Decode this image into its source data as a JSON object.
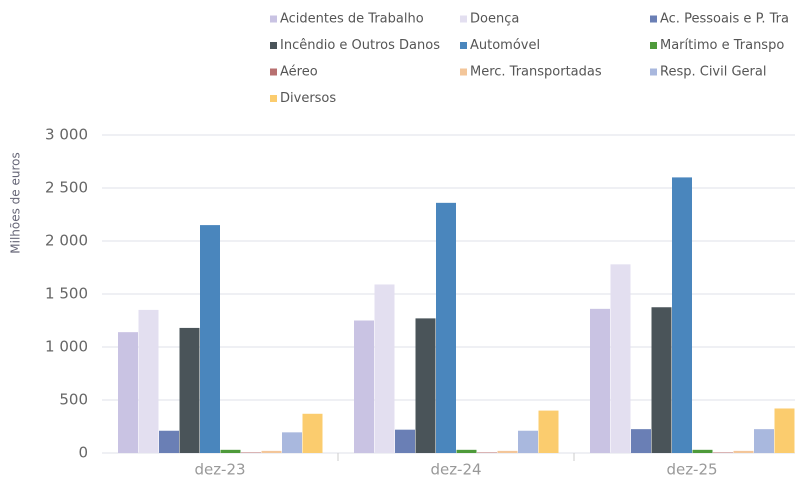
{
  "chart_data": {
    "type": "bar",
    "y_label": "Milhões de euros",
    "categories": [
      "dez-23",
      "dez-24",
      "dez-25"
    ],
    "series": [
      {
        "name": "Acidentes de Trabalho",
        "color": "#c9c3e3",
        "values": [
          1140,
          1250,
          1360
        ]
      },
      {
        "name": "Doença",
        "color": "#e3dff0",
        "values": [
          1350,
          1590,
          1780
        ]
      },
      {
        "name": "Ac. Pessoais e P. Tra",
        "color": "#6a7fb5",
        "values": [
          210,
          220,
          225
        ]
      },
      {
        "name": "Incêndio e Outros Danos",
        "color": "#4a5459",
        "values": [
          1180,
          1270,
          1375
        ]
      },
      {
        "name": "Automóvel",
        "color": "#4a86bd",
        "values": [
          2150,
          2360,
          2600
        ]
      },
      {
        "name": "Marítimo e Transpo",
        "color": "#4e9a3a",
        "values": [
          30,
          30,
          30
        ]
      },
      {
        "name": "Aéreo",
        "color": "#b87070",
        "values": [
          5,
          5,
          5
        ]
      },
      {
        "name": "Merc. Transportadas",
        "color": "#f3c69a",
        "values": [
          20,
          20,
          20
        ]
      },
      {
        "name": "Resp. Civil Geral",
        "color": "#a9b8de",
        "values": [
          195,
          210,
          225
        ]
      },
      {
        "name": "Diversos",
        "color": "#fbcc6e",
        "values": [
          370,
          400,
          420
        ]
      }
    ],
    "ylim": [
      0,
      3000
    ],
    "yticks": [
      0,
      500,
      {
        "value": 1000,
        "label": "1 000"
      },
      {
        "value": 1500,
        "label": "1 500"
      },
      {
        "value": 2000,
        "label": "2 000"
      },
      {
        "value": 2500,
        "label": "2 500"
      },
      {
        "value": 3000,
        "label": "3 000"
      }
    ],
    "grid": true
  }
}
